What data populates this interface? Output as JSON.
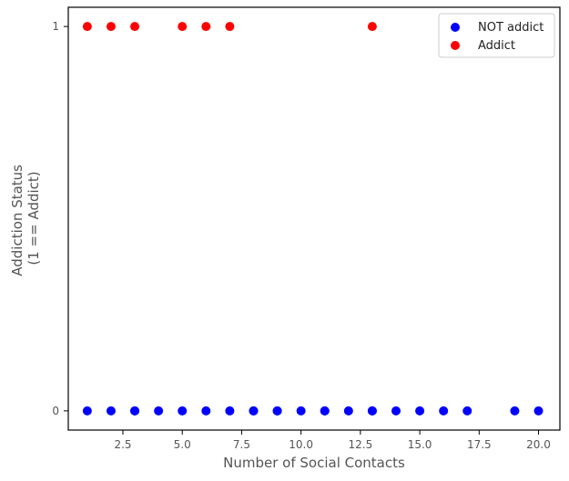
{
  "chart_data": {
    "type": "scatter",
    "title": "",
    "xlabel": "Number of Social Contacts",
    "ylabel": [
      "Addiction Status",
      "(1 == Addict)"
    ],
    "xlim": [
      0.2,
      20.9
    ],
    "ylim": [
      -0.05,
      1.05
    ],
    "xticks": [
      2.5,
      5.0,
      7.5,
      10.0,
      12.5,
      15.0,
      17.5,
      20.0
    ],
    "xtick_labels": [
      "2.5",
      "5.0",
      "7.5",
      "10.0",
      "12.5",
      "15.0",
      "17.5",
      "20.0"
    ],
    "yticks": [
      0,
      1
    ],
    "ytick_labels": [
      "0",
      "1"
    ],
    "grid": false,
    "legend_position": "top-right",
    "series": [
      {
        "name": "NOT addict",
        "color": "#0000ff",
        "x": [
          1,
          2,
          3,
          3,
          4,
          5,
          6,
          7,
          8,
          8,
          9,
          9,
          10,
          11,
          11,
          12,
          13,
          13,
          14,
          15,
          16,
          17,
          19,
          20
        ],
        "y": [
          0,
          0,
          0,
          0,
          0,
          0,
          0,
          0,
          0,
          0,
          0,
          0,
          0,
          0,
          0,
          0,
          0,
          0,
          0,
          0,
          0,
          0,
          0,
          0
        ]
      },
      {
        "name": "Addict",
        "color": "#ff0000",
        "x": [
          1,
          2,
          3,
          5,
          6,
          7,
          13
        ],
        "y": [
          1,
          1,
          1,
          1,
          1,
          1,
          1
        ]
      }
    ]
  }
}
